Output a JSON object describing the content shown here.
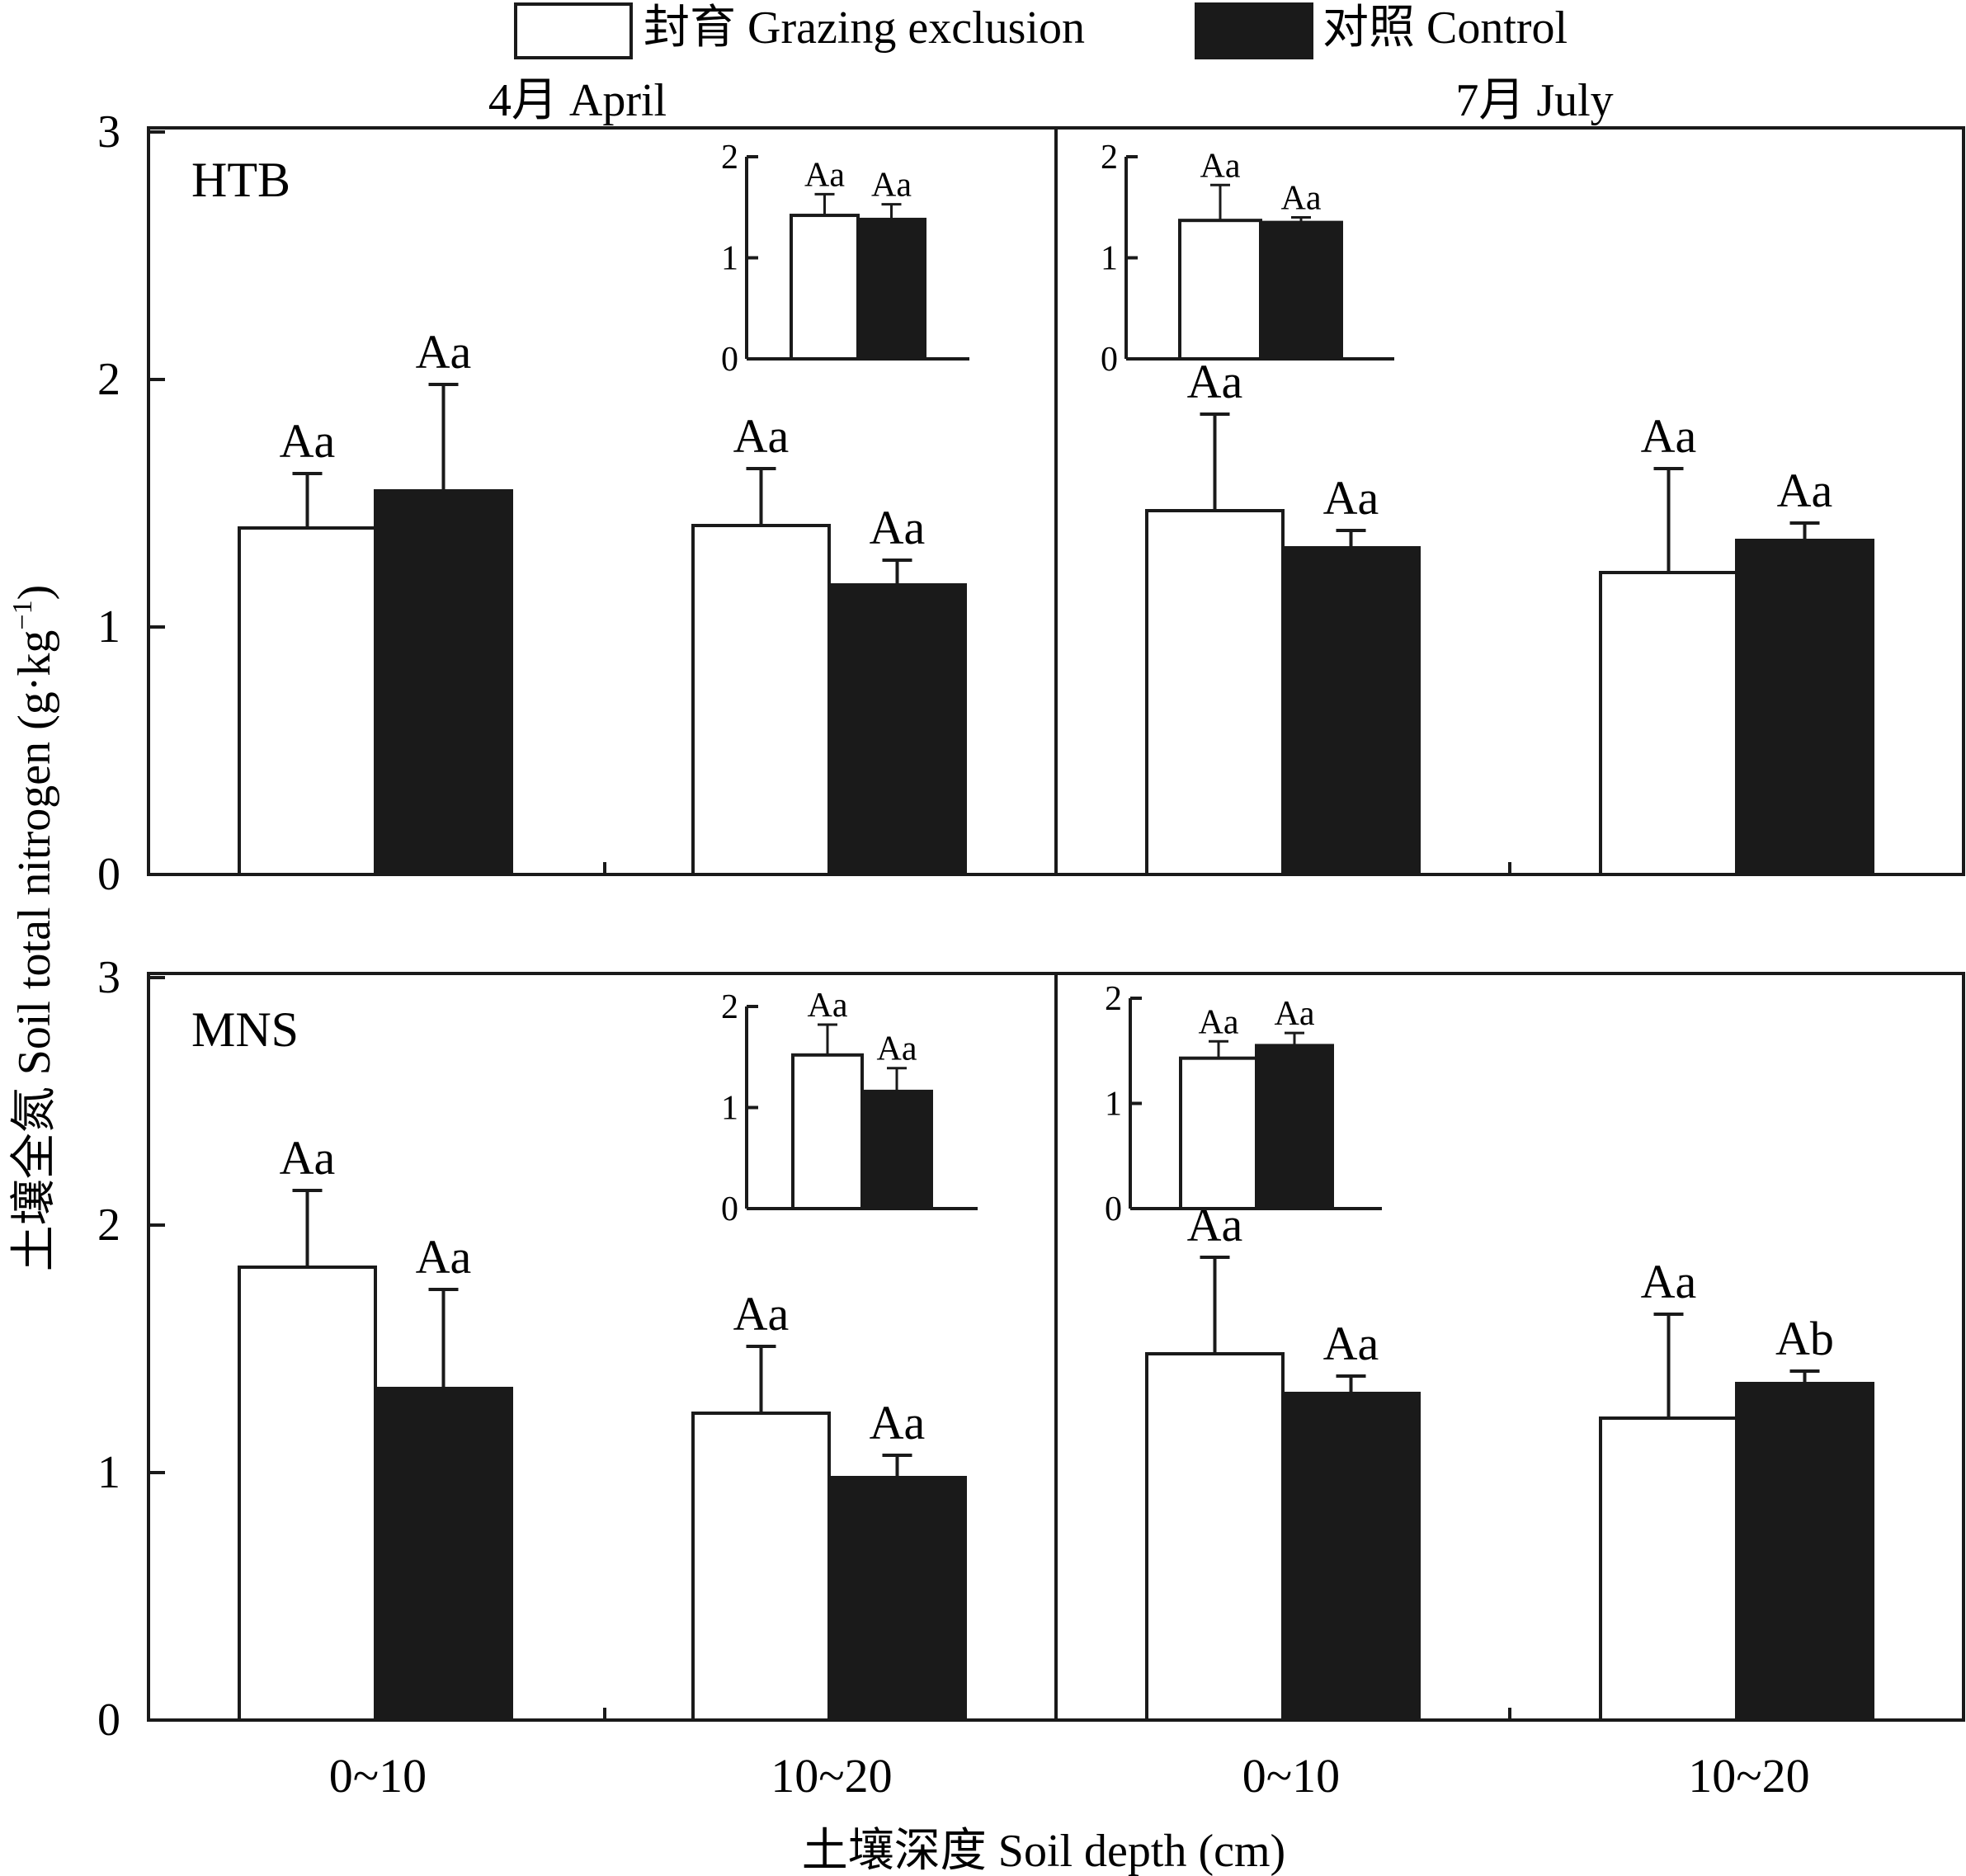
{
  "legend": {
    "items": [
      {
        "label": "封育 Grazing exclusion",
        "fill": "#ffffff"
      },
      {
        "label": "对照 Control",
        "fill": "#1a1a1a"
      }
    ]
  },
  "months": [
    "4月 April",
    "7月 July"
  ],
  "axes": {
    "ylabel": "土壤全氮 Soil total nitrogen (g·kg",
    "ylabel_sup": "−1",
    "ylabel_close": ")",
    "xlabel": "土壤深度 Soil depth (cm)",
    "main_yticks": [
      "0",
      "1",
      "2",
      "3"
    ],
    "inset_yticks": [
      "0",
      "1",
      "2"
    ]
  },
  "colors": {
    "exclusion": "#ffffff",
    "control": "#1a1a1a",
    "stroke": "#1a1a1a"
  },
  "chart_data": [
    {
      "type": "bar",
      "site": "HTB",
      "month": "4月 April",
      "categories": [
        "0~10",
        "10~20"
      ],
      "ylim": [
        0,
        3
      ],
      "series": [
        {
          "name": "封育 Grazing exclusion",
          "values": [
            1.4,
            1.41
          ],
          "errors": [
            0.22,
            0.23
          ],
          "labels": [
            "Aa",
            "Aa"
          ]
        },
        {
          "name": "对照 Control",
          "values": [
            1.55,
            1.17
          ],
          "errors": [
            0.43,
            0.1
          ],
          "labels": [
            "Aa",
            "Aa"
          ]
        }
      ],
      "inset": {
        "ylim": [
          0,
          2
        ],
        "series": [
          {
            "name": "封育 Grazing exclusion",
            "value": 1.42,
            "error": 0.21,
            "label": "Aa"
          },
          {
            "name": "对照 Control",
            "value": 1.38,
            "error": 0.15,
            "label": "Aa"
          }
        ]
      }
    },
    {
      "type": "bar",
      "site": "HTB",
      "month": "7月 July",
      "categories": [
        "0~10",
        "10~20"
      ],
      "ylim": [
        0,
        3
      ],
      "series": [
        {
          "name": "封育 Grazing exclusion",
          "values": [
            1.47,
            1.22
          ],
          "errors": [
            0.39,
            0.42
          ],
          "labels": [
            "Aa",
            "Aa"
          ]
        },
        {
          "name": "对照 Control",
          "values": [
            1.32,
            1.35
          ],
          "errors": [
            0.07,
            0.07
          ],
          "labels": [
            "Aa",
            "Aa"
          ]
        }
      ],
      "inset": {
        "ylim": [
          0,
          2
        ],
        "series": [
          {
            "name": "封育 Grazing exclusion",
            "value": 1.37,
            "error": 0.35,
            "label": "Aa"
          },
          {
            "name": "对照 Control",
            "value": 1.35,
            "error": 0.05,
            "label": "Aa"
          }
        ]
      }
    },
    {
      "type": "bar",
      "site": "MNS",
      "month": "4月 April",
      "categories": [
        "0~10",
        "10~20"
      ],
      "ylim": [
        0,
        3
      ],
      "series": [
        {
          "name": "封育 Grazing exclusion",
          "values": [
            1.83,
            1.24
          ],
          "errors": [
            0.31,
            0.27
          ],
          "labels": [
            "Aa",
            "Aa"
          ]
        },
        {
          "name": "对照 Control",
          "values": [
            1.34,
            0.98
          ],
          "errors": [
            0.4,
            0.09
          ],
          "labels": [
            "Aa",
            "Aa"
          ]
        }
      ],
      "inset": {
        "ylim": [
          0,
          2
        ],
        "series": [
          {
            "name": "封育 Grazing exclusion",
            "value": 1.52,
            "error": 0.3,
            "label": "Aa"
          },
          {
            "name": "对照 Control",
            "value": 1.16,
            "error": 0.23,
            "label": "Aa"
          }
        ]
      }
    },
    {
      "type": "bar",
      "site": "MNS",
      "month": "7月 July",
      "categories": [
        "0~10",
        "10~20"
      ],
      "ylim": [
        0,
        3
      ],
      "series": [
        {
          "name": "封育 Grazing exclusion",
          "values": [
            1.48,
            1.22
          ],
          "errors": [
            0.39,
            0.42
          ],
          "labels": [
            "Aa",
            "Aa"
          ]
        },
        {
          "name": "对照 Control",
          "values": [
            1.32,
            1.36
          ],
          "errors": [
            0.07,
            0.05
          ],
          "labels": [
            "Aa",
            "Ab"
          ]
        }
      ],
      "inset": {
        "ylim": [
          0,
          2
        ],
        "series": [
          {
            "name": "封育 Grazing exclusion",
            "value": 1.43,
            "error": 0.16,
            "label": "Aa"
          },
          {
            "name": "对照 Control",
            "value": 1.55,
            "error": 0.12,
            "label": "Aa"
          }
        ]
      }
    }
  ]
}
